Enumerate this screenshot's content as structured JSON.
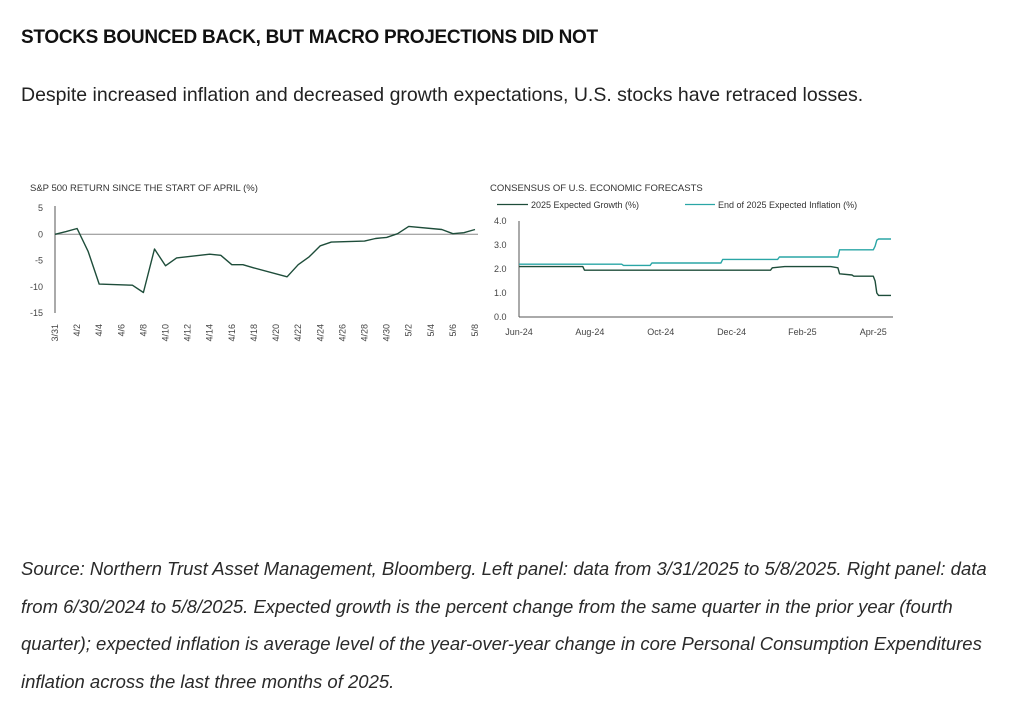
{
  "headline": "STOCKS BOUNCED BACK, BUT MACRO PROJECTIONS DID NOT",
  "subheadline": "Despite increased inflation and decreased growth expectations, U.S. stocks have retraced losses.",
  "source_note": "Source: Northern Trust Asset Management, Bloomberg. Left panel: data from 3/31/2025 to 5/8/2025. Right panel: data from 6/30/2024 to 5/8/2025. Expected growth is the percent change from the same quarter in the prior year (fourth quarter); expected inflation is average level of the year-over-year change in core Personal Consumption Expenditures inflation across the last three months of 2025.",
  "colors": {
    "sp500": "#1e4d3a",
    "growth": "#1e4d3a",
    "inflation": "#2aa6a6",
    "axis": "#555555",
    "zero": "#888888"
  },
  "chart_data": [
    {
      "type": "line",
      "title": "S&P 500 RETURN SINCE THE START OF APRIL (%)",
      "xlabel": "",
      "ylabel": "",
      "ylim": [
        -15,
        5
      ],
      "yticks": [
        "5",
        "0",
        "-5",
        "-10",
        "-15"
      ],
      "ytick_values": [
        5,
        0,
        -5,
        -10,
        -15
      ],
      "xlim": [
        0,
        38
      ],
      "xticks": [
        "3/31",
        "4/2",
        "4/4",
        "4/6",
        "4/8",
        "4/10",
        "4/12",
        "4/14",
        "4/16",
        "4/18",
        "4/20",
        "4/22",
        "4/24",
        "4/26",
        "4/28",
        "4/30",
        "5/2",
        "5/4",
        "5/6",
        "5/8"
      ],
      "xtick_values": [
        0,
        2,
        4,
        6,
        8,
        10,
        12,
        14,
        16,
        18,
        20,
        22,
        24,
        26,
        28,
        30,
        32,
        34,
        36,
        38
      ],
      "series": [
        {
          "name": "S&P 500 return (%)",
          "x": [
            0,
            1,
            2,
            3,
            4,
            7,
            8,
            9,
            10,
            11,
            14,
            15,
            16,
            17,
            18,
            21,
            22,
            23,
            24,
            25,
            28,
            29,
            30,
            31,
            32,
            35,
            36,
            37,
            38
          ],
          "values": [
            0,
            0.5,
            1.1,
            -3.3,
            -9.5,
            -9.7,
            -11.1,
            -2.8,
            -6.0,
            -4.5,
            -3.8,
            -4.0,
            -5.8,
            -5.8,
            -6.4,
            -8.1,
            -5.8,
            -4.3,
            -2.2,
            -1.5,
            -1.3,
            -0.8,
            -0.6,
            0.1,
            1.5,
            0.9,
            0.1,
            0.3,
            0.9
          ]
        }
      ]
    },
    {
      "type": "line",
      "title": "CONSENSUS OF U.S. ECONOMIC FORECASTS",
      "xlabel": "",
      "ylabel": "",
      "ylim": [
        0.0,
        4.0
      ],
      "yticks": [
        "4.0",
        "3.0",
        "2.0",
        "1.0",
        "0.0"
      ],
      "ytick_values": [
        4.0,
        3.0,
        2.0,
        1.0,
        0.0
      ],
      "xlim": [
        0,
        10.5
      ],
      "xticks": [
        "Jun-24",
        "Aug-24",
        "Oct-24",
        "Dec-24",
        "Feb-25",
        "Apr-25"
      ],
      "xtick_values": [
        0,
        2,
        4,
        6,
        8,
        10
      ],
      "series": [
        {
          "name": "2025 Expected Growth (%)",
          "x": [
            0,
            1.8,
            1.85,
            7.1,
            7.15,
            7.5,
            8.8,
            9.0,
            9.05,
            9.4,
            9.45,
            10.0,
            10.05,
            10.1,
            10.15,
            10.5
          ],
          "values": [
            2.1,
            2.1,
            1.95,
            1.95,
            2.05,
            2.1,
            2.1,
            2.05,
            1.8,
            1.75,
            1.7,
            1.7,
            1.5,
            1.0,
            0.9,
            0.9
          ]
        },
        {
          "name": "End of 2025 Expected Inflation (%)",
          "x": [
            0,
            2.9,
            2.95,
            3.7,
            3.75,
            5.7,
            5.75,
            7.3,
            7.35,
            9.0,
            9.05,
            10.0,
            10.05,
            10.1,
            10.15,
            10.5
          ],
          "values": [
            2.2,
            2.2,
            2.15,
            2.15,
            2.25,
            2.25,
            2.4,
            2.4,
            2.5,
            2.5,
            2.8,
            2.8,
            2.95,
            3.2,
            3.25,
            3.25
          ]
        }
      ]
    }
  ]
}
